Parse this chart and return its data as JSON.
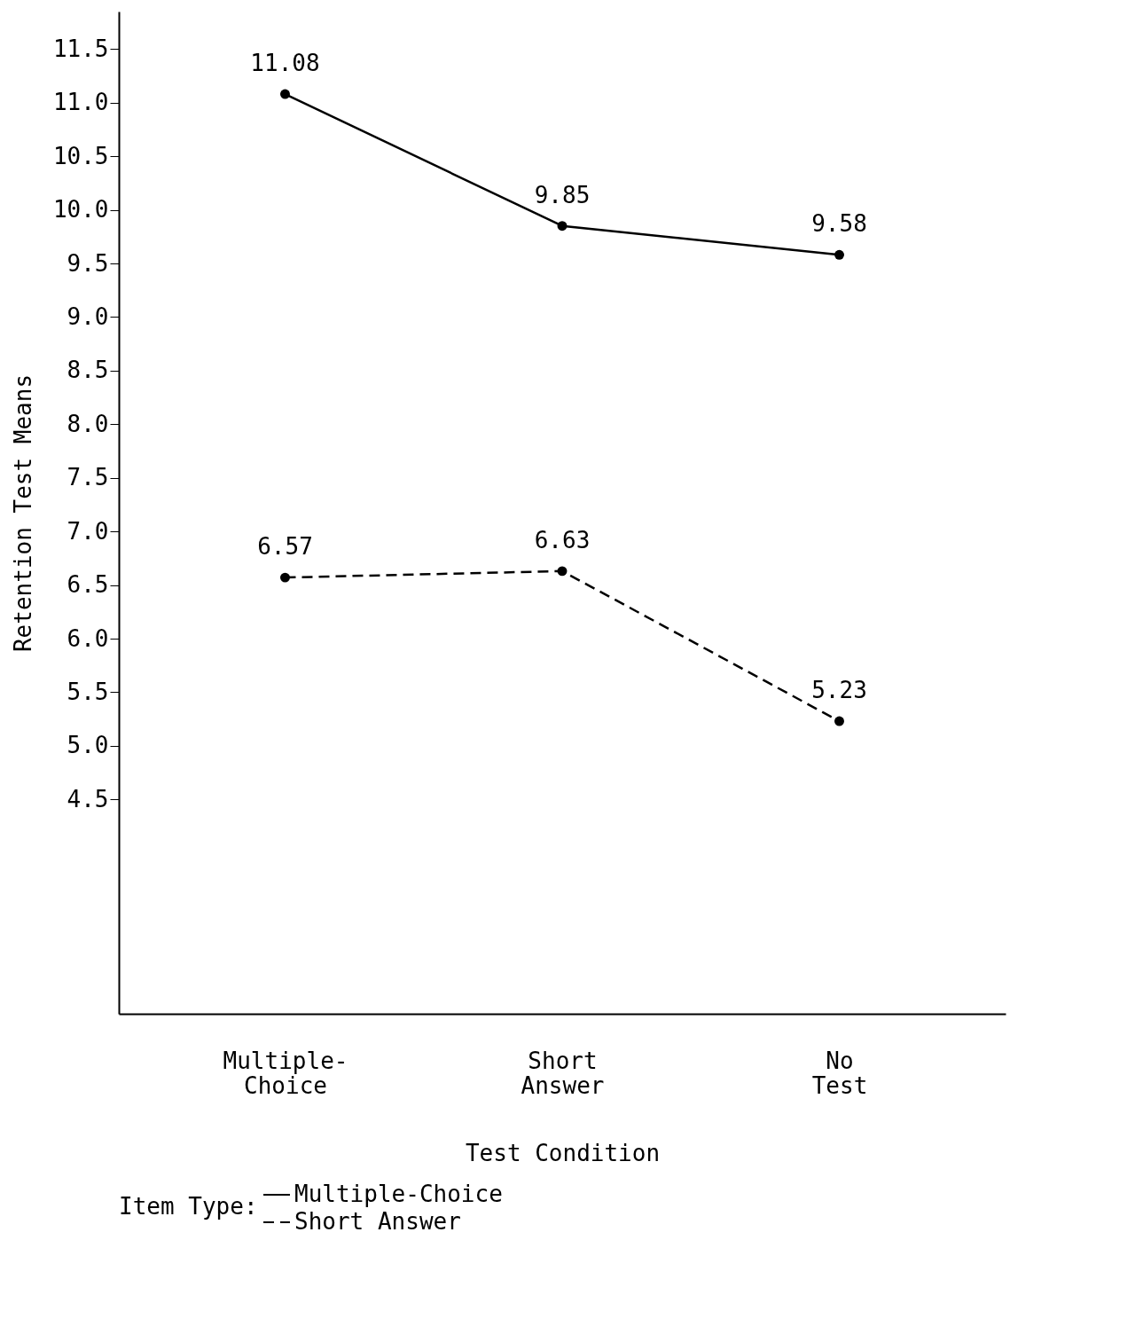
{
  "chart_data": {
    "type": "line",
    "xlabel": "Test Condition",
    "ylabel": "Retention Test Means",
    "legend_title": "Item Type:",
    "categories": [
      "Multiple-Choice",
      "Short Answer",
      "No Test"
    ],
    "series": [
      {
        "name": "Multiple-Choice",
        "color": "#000000",
        "line_style": "solid",
        "values": [
          11.08,
          9.85,
          9.58
        ]
      },
      {
        "name": "Short Answer",
        "color": "#000000",
        "line_style": "dashed",
        "values": [
          6.57,
          6.63,
          5.23
        ]
      }
    ],
    "ylim": [
      2.5,
      11.85
    ],
    "yticks": [
      {
        "value": 4.5,
        "label": "4.5"
      },
      {
        "value": 5,
        "label": "5.0"
      },
      {
        "value": 5.5,
        "label": "5.5"
      },
      {
        "value": 6,
        "label": "6.0"
      },
      {
        "value": 6.5,
        "label": "6.5"
      },
      {
        "value": 7,
        "label": "7.0"
      },
      {
        "value": 7.5,
        "label": "7.5"
      },
      {
        "value": 8,
        "label": "8.0"
      },
      {
        "value": 8.5,
        "label": "8.5"
      },
      {
        "value": 9,
        "label": "9.0"
      },
      {
        "value": 9.5,
        "label": "9.5"
      },
      {
        "value": 10,
        "label": "10.0"
      },
      {
        "value": 10.5,
        "label": "10.5"
      },
      {
        "value": 11,
        "label": "11.0"
      },
      {
        "value": 11.5,
        "label": "11.5"
      }
    ],
    "grid": false,
    "marker": "circle",
    "data_labels": true,
    "legend": "bottom"
  }
}
